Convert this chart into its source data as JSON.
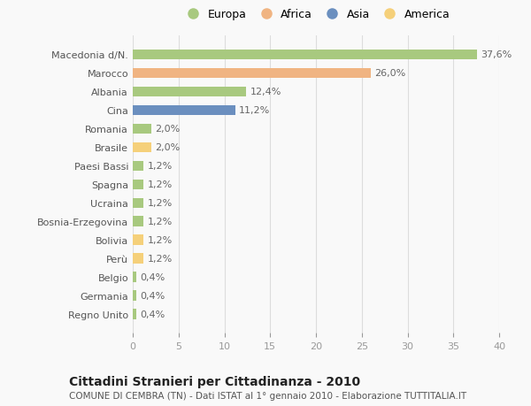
{
  "categories": [
    "Macedonia d/N.",
    "Marocco",
    "Albania",
    "Cina",
    "Romania",
    "Brasile",
    "Paesi Bassi",
    "Spagna",
    "Ucraina",
    "Bosnia-Erzegovina",
    "Bolivia",
    "Perù",
    "Belgio",
    "Germania",
    "Regno Unito"
  ],
  "values": [
    37.6,
    26.0,
    12.4,
    11.2,
    2.0,
    2.0,
    1.2,
    1.2,
    1.2,
    1.2,
    1.2,
    1.2,
    0.4,
    0.4,
    0.4
  ],
  "continents": [
    "Europa",
    "Africa",
    "Europa",
    "Asia",
    "Europa",
    "America",
    "Europa",
    "Europa",
    "Europa",
    "Europa",
    "America",
    "America",
    "Europa",
    "Europa",
    "Europa"
  ],
  "colors": {
    "Europa": "#a8c97f",
    "Africa": "#f0b482",
    "Asia": "#6b8fbf",
    "America": "#f5d07a"
  },
  "legend_order": [
    "Europa",
    "Africa",
    "Asia",
    "America"
  ],
  "xlim": [
    0,
    40
  ],
  "xticks": [
    0,
    5,
    10,
    15,
    20,
    25,
    30,
    35,
    40
  ],
  "title": "Cittadini Stranieri per Cittadinanza - 2010",
  "subtitle": "COMUNE DI CEMBRA (TN) - Dati ISTAT al 1° gennaio 2010 - Elaborazione TUTTITALIA.IT",
  "background_color": "#f9f9f9",
  "bar_height": 0.55,
  "label_fontsize": 8,
  "tick_fontsize": 8,
  "title_fontsize": 10,
  "subtitle_fontsize": 7.5
}
